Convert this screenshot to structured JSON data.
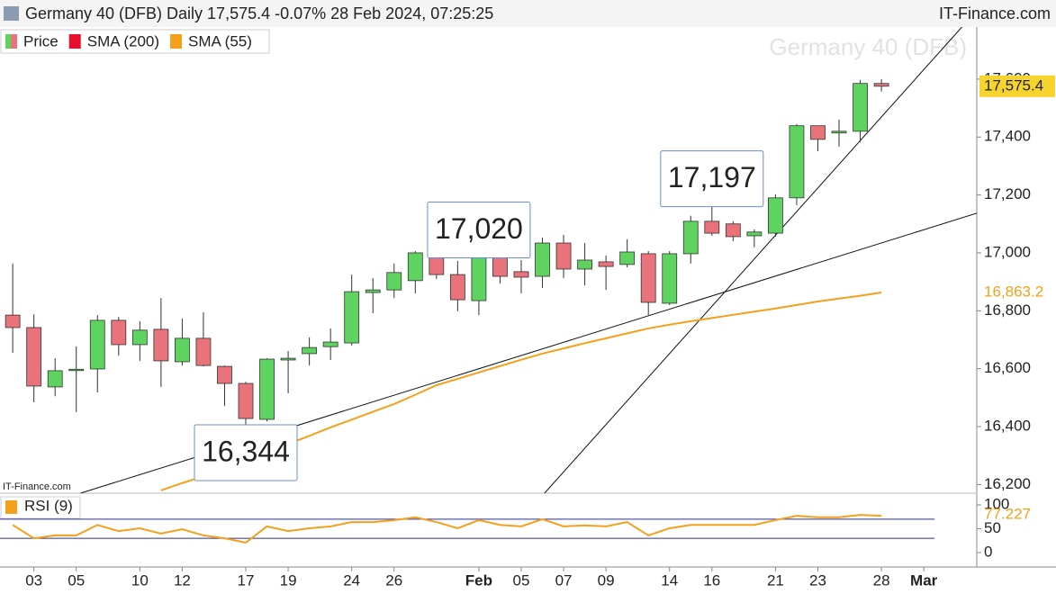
{
  "chart_data": {
    "type": "candlestick",
    "title": "Germany 40 (DFB) Daily 17,575.4 -0.07% 28 Feb 2024, 07:25:25",
    "source": "IT-Finance.com",
    "watermark": "Germany 40 (DFB)",
    "source_small": "IT-Finance.com",
    "legend": [
      {
        "name": "Price"
      },
      {
        "name": "SMA (200)",
        "color": "#e8102e"
      },
      {
        "name": "SMA (55)",
        "color": "#f5a01a"
      }
    ],
    "up_color": "#5fd35f",
    "down_color": "#e8737a",
    "open": [
      16785,
      16742,
      16537,
      16594,
      16599,
      16767,
      16683,
      16736,
      16624,
      16705,
      16608,
      16549,
      16425,
      16630,
      16652,
      16676,
      16689,
      16863,
      16872,
      16904,
      17000,
      16925,
      16835,
      16988,
      16935,
      16919,
      17034,
      16944,
      16969,
      16960,
      16997,
      16826,
      16997,
      17109,
      17100,
      17059,
      17068,
      17190,
      17439,
      17414,
      17420,
      17585
    ],
    "high": [
      16963,
      16788,
      16636,
      16677,
      16785,
      16779,
      16764,
      16844,
      16773,
      16795,
      16611,
      16555,
      16636,
      16661,
      16708,
      16739,
      16925,
      16913,
      16963,
      17006,
      17019,
      16972,
      17020,
      17016,
      16975,
      17053,
      17062,
      17034,
      16991,
      17047,
      17006,
      17006,
      17128,
      17197,
      17109,
      17081,
      17202,
      17445,
      17439,
      17460,
      17597,
      17600
    ],
    "low": [
      16655,
      16484,
      16505,
      16450,
      16518,
      16645,
      16627,
      16537,
      16611,
      16608,
      16471,
      16344,
      16418,
      16515,
      16611,
      16630,
      16680,
      16792,
      16844,
      16860,
      16910,
      16798,
      16785,
      16894,
      16860,
      16879,
      16913,
      16888,
      16872,
      16950,
      16785,
      16820,
      16963,
      17059,
      17040,
      17019,
      17056,
      17165,
      17351,
      17367,
      17383,
      17557
    ],
    "close": [
      16742,
      16540,
      16593,
      16598,
      16767,
      16683,
      16733,
      16627,
      16705,
      16611,
      16549,
      16428,
      16633,
      16636,
      16673,
      16692,
      16866,
      16872,
      16932,
      17000,
      16925,
      16838,
      16994,
      16919,
      16916,
      17034,
      16944,
      16975,
      16953,
      17003,
      16829,
      16997,
      17109,
      17068,
      17056,
      17072,
      17190,
      17439,
      17392,
      17420,
      17585,
      17575.4
    ],
    "sma55": {
      "values": [
        null,
        null,
        null,
        null,
        null,
        null,
        null,
        16180,
        16205,
        16228,
        16257,
        16285,
        16313,
        16340,
        16368,
        16397,
        16424,
        16451,
        16478,
        16510,
        16543,
        16565,
        16587,
        16609,
        16631,
        16652,
        16670,
        16688,
        16705,
        16722,
        16739,
        16752,
        16764,
        16775,
        16786,
        16797,
        16808,
        16820,
        16832,
        16842,
        16852,
        16863.2
      ],
      "last_label": "16,863.2"
    },
    "price_marker": {
      "value": 17575.4,
      "label": "17,575.4",
      "color": "#f7d32e"
    },
    "annotations": [
      {
        "index": 33,
        "value": 17197,
        "label": "17,197"
      },
      {
        "index": 22,
        "value": 17020,
        "label": "17,020"
      },
      {
        "index": 11,
        "value": 16344,
        "label": "16,344"
      }
    ],
    "trendlines": [
      {
        "x": [
          3.2,
          45.5
        ],
        "y": [
          16170,
          17137
        ]
      },
      {
        "x": [
          25.1,
          44.8
        ],
        "y": [
          16170,
          17780
        ]
      }
    ],
    "xlim": [
      -0.6,
      45.5
    ],
    "xticks": [
      {
        "value": 1,
        "label": "03"
      },
      {
        "value": 3,
        "label": "05"
      },
      {
        "value": 6,
        "label": "10"
      },
      {
        "value": 8,
        "label": "12"
      },
      {
        "value": 11,
        "label": "17"
      },
      {
        "value": 13,
        "label": "19"
      },
      {
        "value": 16,
        "label": "24"
      },
      {
        "value": 18,
        "label": "26"
      },
      {
        "value": 22,
        "label": "Feb"
      },
      {
        "value": 24,
        "label": "05"
      },
      {
        "value": 26,
        "label": "07"
      },
      {
        "value": 28,
        "label": "09"
      },
      {
        "value": 31,
        "label": "14"
      },
      {
        "value": 33,
        "label": "16"
      },
      {
        "value": 36,
        "label": "21"
      },
      {
        "value": 38,
        "label": "23"
      },
      {
        "value": 41,
        "label": "28"
      },
      {
        "value": 43,
        "label": "Mar"
      }
    ],
    "ylim": [
      16170,
      17780
    ],
    "yticks": [
      {
        "value": 16200,
        "label": "16,200"
      },
      {
        "value": 16400,
        "label": "16,400"
      },
      {
        "value": 16600,
        "label": "16,600"
      },
      {
        "value": 16800,
        "label": "16,800"
      },
      {
        "value": 17000,
        "label": "17,000"
      },
      {
        "value": 17200,
        "label": "17,200"
      },
      {
        "value": 17400,
        "label": "17,400"
      },
      {
        "value": 17600,
        "label": "17,600"
      }
    ],
    "rsi": {
      "title": "RSI (9)",
      "color": "#f5a01a",
      "level_color": "#2a2f8f",
      "values": [
        58,
        30,
        36,
        36,
        58,
        45,
        51,
        40,
        49,
        36,
        30,
        21,
        55,
        45,
        51,
        55,
        64,
        64,
        68,
        74,
        64,
        51,
        68,
        58,
        55,
        70,
        55,
        57,
        55,
        64,
        36,
        51,
        58,
        58,
        58,
        58,
        68,
        77,
        74,
        74,
        79,
        77.227
      ],
      "last_label": 77.227,
      "ylim": [
        0,
        100
      ],
      "yticks": [
        0,
        50,
        100
      ],
      "levels": [
        30,
        70
      ]
    }
  }
}
